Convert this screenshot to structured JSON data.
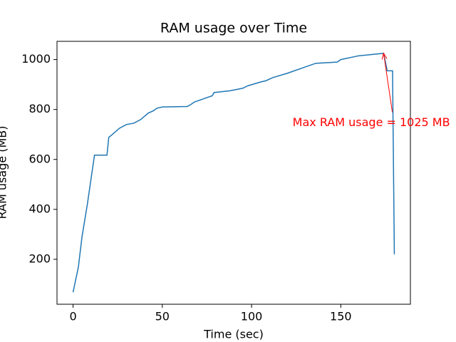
{
  "chart_data": {
    "type": "line",
    "title": "RAM usage over Time",
    "xlabel": "Time (sec)",
    "ylabel": "RAM usage (MB)",
    "x": [
      0,
      3,
      5,
      8,
      12,
      19,
      20,
      22,
      26,
      30,
      34,
      38,
      42,
      45,
      47,
      50,
      64,
      66,
      68,
      72,
      78,
      79,
      88,
      95,
      98,
      105,
      108,
      112,
      120,
      130,
      136,
      148,
      150,
      160,
      174,
      176,
      179,
      180
    ],
    "series": [
      {
        "name": "RAM usage",
        "color": "#1f77b4",
        "values": [
          68,
          170,
          290,
          420,
          617,
          617,
          688,
          700,
          725,
          740,
          745,
          760,
          785,
          795,
          805,
          810,
          812,
          820,
          830,
          840,
          855,
          868,
          875,
          885,
          895,
          910,
          915,
          928,
          945,
          970,
          985,
          990,
          1000,
          1015,
          1025,
          955,
          955,
          220
        ]
      }
    ],
    "xlim": [
      -9,
      189
    ],
    "ylim": [
      20,
      1073
    ],
    "xticks": [
      0,
      50,
      100,
      150
    ],
    "yticks": [
      200,
      400,
      600,
      800,
      1000
    ],
    "annotation": {
      "text": "Max RAM usage = 1025 MB",
      "color": "red",
      "xy": [
        174,
        1025
      ],
      "xytext": [
        123,
        746
      ]
    }
  }
}
